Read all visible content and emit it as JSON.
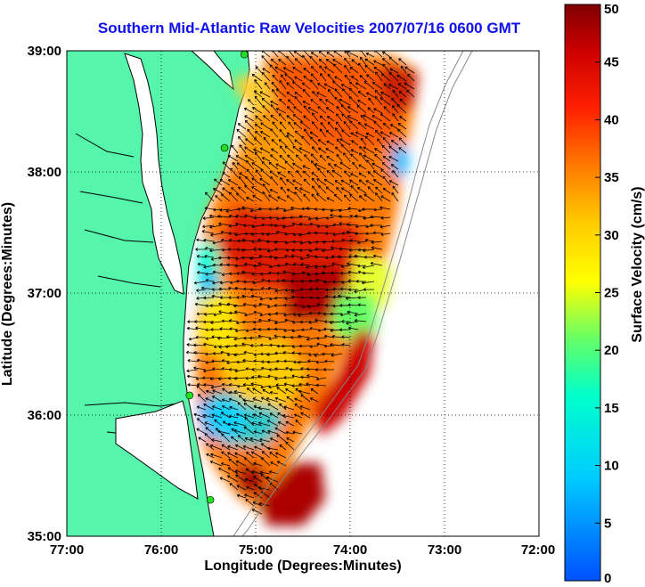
{
  "title": "Southern Mid-Atlantic Raw Velocities 2007/07/16 0600 GMT",
  "x_axis": {
    "label": "Longitude (Degrees:Minutes)",
    "ticks": [
      "77:00",
      "76:00",
      "75:00",
      "74:00",
      "73:00",
      "72:00"
    ]
  },
  "y_axis": {
    "label": "Latitude (Degrees:Minutes)",
    "ticks": [
      "39:00",
      "38:00",
      "37:00",
      "36:00",
      "35:00"
    ]
  },
  "colorbar": {
    "label": "Surface Velocity (cm/s)",
    "ticks": [
      "50",
      "45",
      "40",
      "35",
      "30",
      "25",
      "20",
      "15",
      "10",
      "5",
      "0"
    ],
    "range": [
      0,
      50
    ]
  },
  "colors": {
    "land": "#55f5ab",
    "ocean": "#ffffff",
    "title": "#1010ee",
    "station": "#22dd22"
  },
  "map": {
    "lon_range": [
      -77,
      -72
    ],
    "lat_range": [
      35,
      39
    ],
    "grid": "dotted",
    "stations": [
      {
        "lon": -75.12,
        "lat": 38.97
      },
      {
        "lon": -75.33,
        "lat": 38.2
      },
      {
        "lon": -75.7,
        "lat": 36.16
      },
      {
        "lon": -75.48,
        "lat": 35.3
      }
    ]
  }
}
